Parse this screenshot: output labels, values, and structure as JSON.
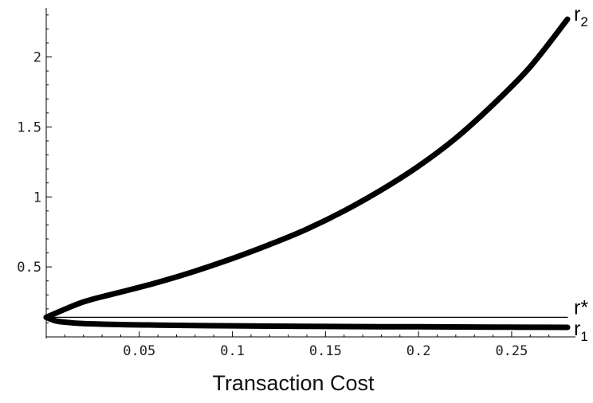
{
  "chart_data": {
    "type": "line",
    "title": "",
    "xlabel": "Transaction Cost",
    "ylabel": "",
    "xlim": [
      0,
      0.28
    ],
    "ylim": [
      0,
      2.35
    ],
    "x_ticks": [
      0.05,
      0.1,
      0.15,
      0.2,
      0.25
    ],
    "x_tick_labels": [
      "0.05",
      "0.1",
      "0.15",
      "0.2",
      "0.25"
    ],
    "y_ticks": [
      0.5,
      1,
      1.5,
      2
    ],
    "y_tick_labels": [
      "0.5",
      "1",
      "1.5",
      "2"
    ],
    "grid": false,
    "series": [
      {
        "name": "r2",
        "label_main": "r",
        "label_sub": "2",
        "style": "thick",
        "x": [
          0,
          0.02,
          0.04,
          0.06,
          0.08,
          0.1,
          0.12,
          0.14,
          0.16,
          0.18,
          0.2,
          0.22,
          0.24,
          0.26,
          0.28
        ],
        "y": [
          0.14,
          0.25,
          0.32,
          0.39,
          0.47,
          0.56,
          0.66,
          0.77,
          0.9,
          1.05,
          1.22,
          1.42,
          1.66,
          1.93,
          2.27
        ]
      },
      {
        "name": "r*",
        "label_main": "r*",
        "label_sub": "",
        "style": "thin",
        "x": [
          0,
          0.28
        ],
        "y": [
          0.14,
          0.14
        ]
      },
      {
        "name": "r1",
        "label_main": "r",
        "label_sub": "1",
        "style": "thick",
        "x": [
          0,
          0.005,
          0.01,
          0.02,
          0.04,
          0.06,
          0.08,
          0.1,
          0.12,
          0.14,
          0.16,
          0.18,
          0.2,
          0.22,
          0.24,
          0.26,
          0.28
        ],
        "y": [
          0.14,
          0.115,
          0.105,
          0.095,
          0.088,
          0.084,
          0.081,
          0.079,
          0.077,
          0.075,
          0.074,
          0.073,
          0.072,
          0.071,
          0.07,
          0.069,
          0.068
        ]
      }
    ],
    "line_color": "#000000"
  }
}
